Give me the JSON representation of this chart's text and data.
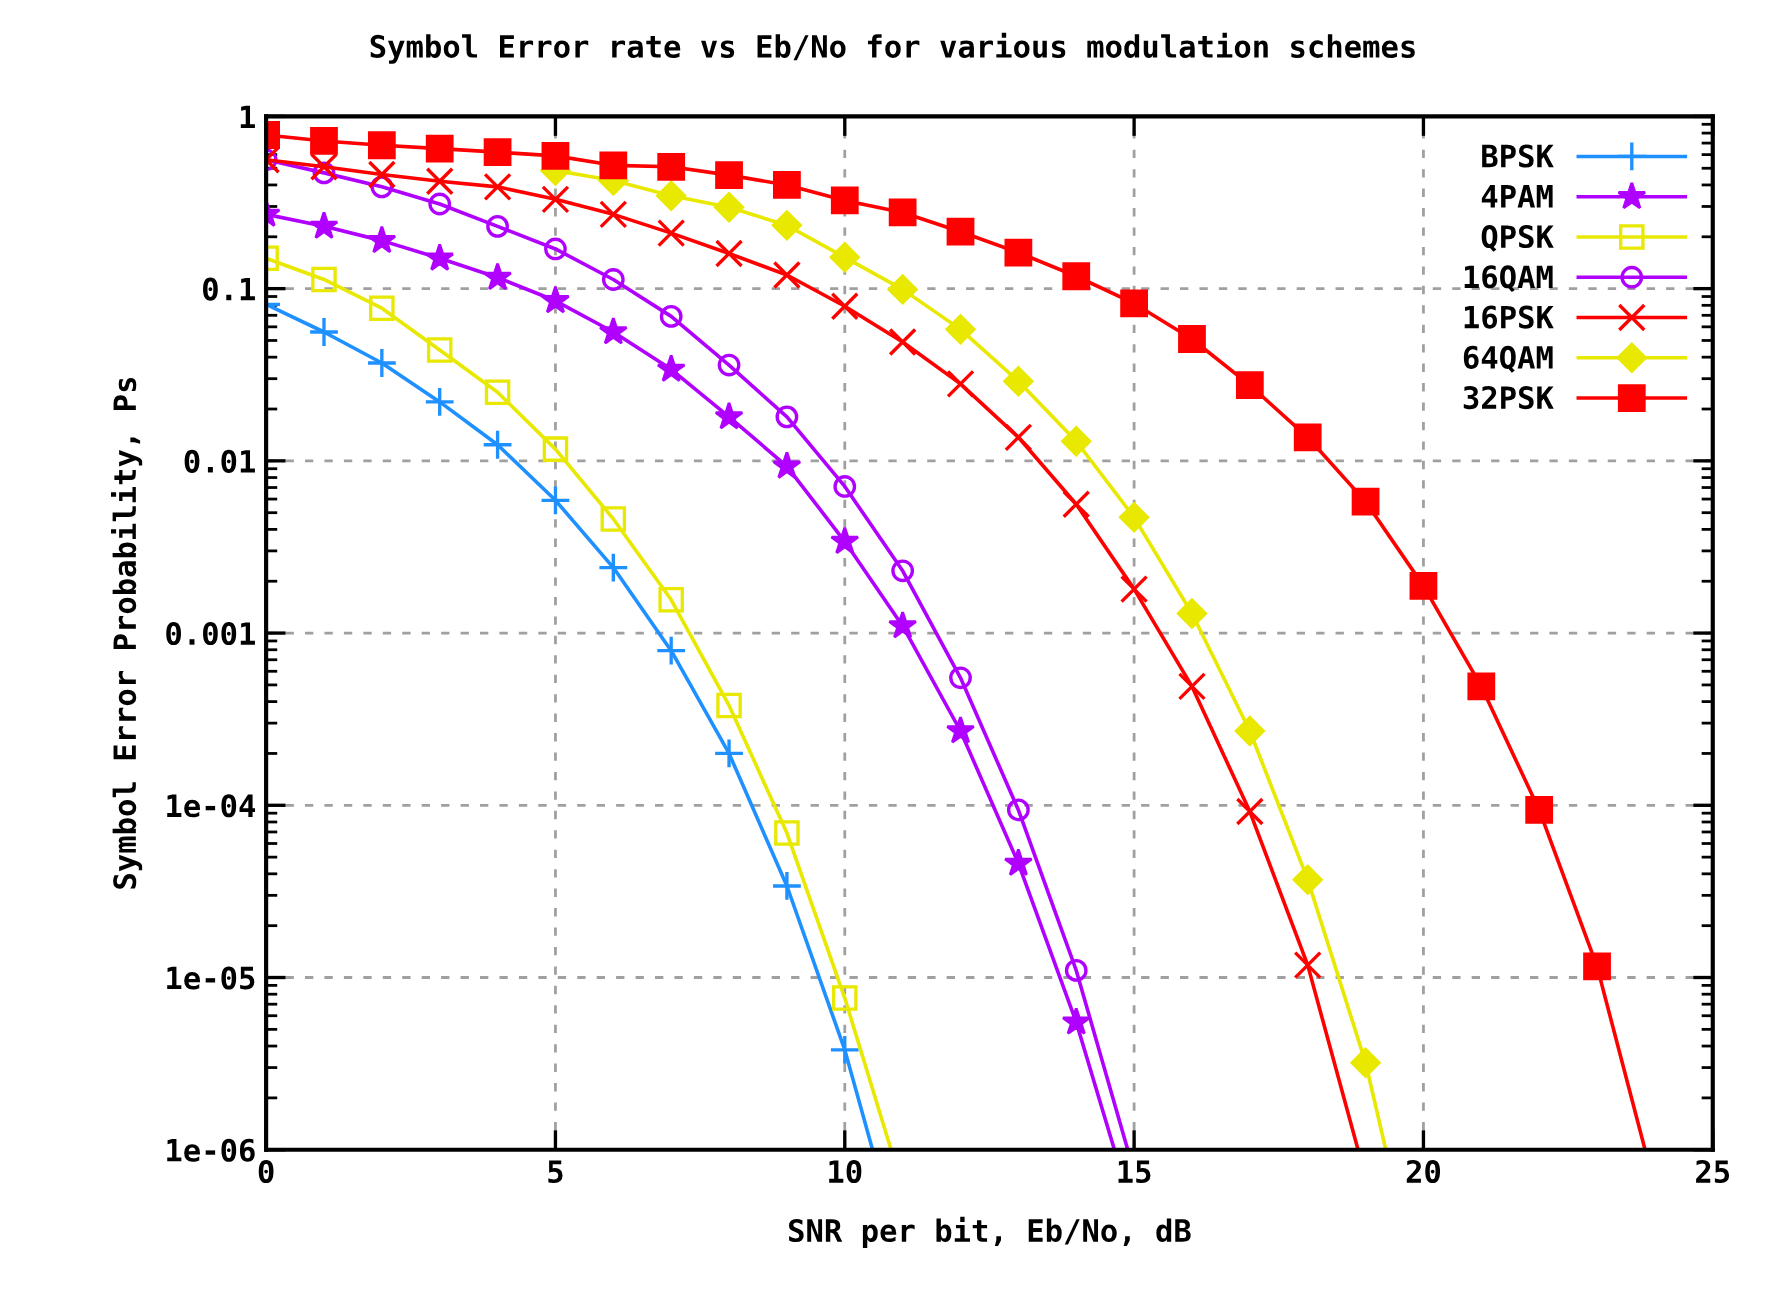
{
  "chart_data": {
    "type": "line",
    "title": "Symbol Error rate vs Eb/No for various modulation schemes",
    "xlabel": "SNR per bit, Eb/No, dB",
    "ylabel": "Symbol Error Probability, Ps",
    "log": "y",
    "grid": true,
    "legend": "top right",
    "line_style": "solid",
    "xlim": [
      0,
      25
    ],
    "xticks": [
      0,
      5,
      10,
      15,
      20,
      25
    ],
    "ylim": [
      1e-06,
      1
    ],
    "yticks": [
      1,
      0.1,
      0.01,
      0.001,
      {
        "value": 0.0001,
        "label": "1e-04"
      },
      {
        "value": 1e-05,
        "label": "1e-05"
      },
      {
        "value": 1e-06,
        "label": "1e-06"
      }
    ],
    "series": [
      {
        "name": "BPSK",
        "color": "#1e90ff",
        "marker": "plus",
        "x": [
          0,
          1,
          2,
          3,
          4,
          5,
          6,
          7,
          8,
          9,
          10,
          10.48
        ],
        "values": [
          0.081,
          0.056,
          0.037,
          0.022,
          0.0124,
          0.0059,
          0.0024,
          0.00079,
          0.0002,
          3.4e-05,
          3.8e-06,
          1e-06
        ]
      },
      {
        "name": "4PAM",
        "color": "#b000ff",
        "marker": "star",
        "x": [
          0,
          1,
          2,
          3,
          4,
          5,
          6,
          7,
          8,
          9,
          10,
          11,
          12,
          13,
          14,
          14.66
        ],
        "values": [
          0.27,
          0.23,
          0.19,
          0.15,
          0.116,
          0.085,
          0.056,
          0.034,
          0.018,
          0.0093,
          0.0034,
          0.0011,
          0.00027,
          4.6e-05,
          5.5e-06,
          1e-06
        ]
      },
      {
        "name": "QPSK",
        "color": "#e8e800",
        "marker": "square_open",
        "x": [
          0,
          1,
          2,
          3,
          4,
          5,
          6,
          7,
          8,
          9,
          10,
          10.8
        ],
        "values": [
          0.15,
          0.113,
          0.077,
          0.044,
          0.025,
          0.0117,
          0.0046,
          0.00156,
          0.00038,
          6.9e-05,
          7.6e-06,
          1e-06
        ]
      },
      {
        "name": "16QAM",
        "color": "#b000ff",
        "marker": "circle_open",
        "x": [
          0,
          1,
          2,
          3,
          4,
          5,
          6,
          7,
          8,
          9,
          10,
          11,
          12,
          13,
          14,
          14.89
        ],
        "values": [
          0.56,
          0.47,
          0.39,
          0.31,
          0.23,
          0.17,
          0.113,
          0.069,
          0.036,
          0.018,
          0.0071,
          0.0023,
          0.00055,
          9.4e-05,
          1.1e-05,
          1e-06
        ]
      },
      {
        "name": "16PSK",
        "color": "#ff0000",
        "marker": "cross",
        "x": [
          0,
          1,
          2,
          3,
          4,
          5,
          6,
          7,
          8,
          9,
          10,
          11,
          12,
          13,
          14,
          15,
          16,
          17,
          18,
          18.87
        ],
        "values": [
          0.56,
          0.51,
          0.46,
          0.42,
          0.39,
          0.33,
          0.27,
          0.21,
          0.16,
          0.12,
          0.079,
          0.049,
          0.028,
          0.0137,
          0.0056,
          0.0018,
          0.00049,
          9.2e-05,
          1.18e-05,
          1e-06
        ]
      },
      {
        "name": "64QAM",
        "color": "#e8e800",
        "marker": "diamond",
        "x": [
          5,
          6,
          7,
          8,
          9,
          10,
          11,
          12,
          13,
          14,
          15,
          16,
          17,
          18,
          19,
          19.35
        ],
        "values": [
          0.485,
          0.425,
          0.346,
          0.297,
          0.233,
          0.152,
          0.099,
          0.058,
          0.029,
          0.013,
          0.0047,
          0.0013,
          0.00027,
          3.7e-05,
          3.2e-06,
          1e-06
        ]
      },
      {
        "name": "32PSK",
        "color": "#ff0000",
        "marker": "square",
        "x": [
          0,
          1,
          2,
          3,
          4,
          5,
          6,
          7,
          8,
          9,
          10,
          11,
          12,
          13,
          14,
          15,
          16,
          17,
          18,
          19,
          20,
          21,
          22,
          23,
          23.83
        ],
        "values": [
          0.78,
          0.72,
          0.68,
          0.65,
          0.62,
          0.59,
          0.52,
          0.51,
          0.456,
          0.4,
          0.325,
          0.277,
          0.214,
          0.162,
          0.118,
          0.082,
          0.051,
          0.0275,
          0.0137,
          0.0058,
          0.00188,
          0.00049,
          9.4e-05,
          1.16e-05,
          1e-06
        ]
      }
    ]
  }
}
